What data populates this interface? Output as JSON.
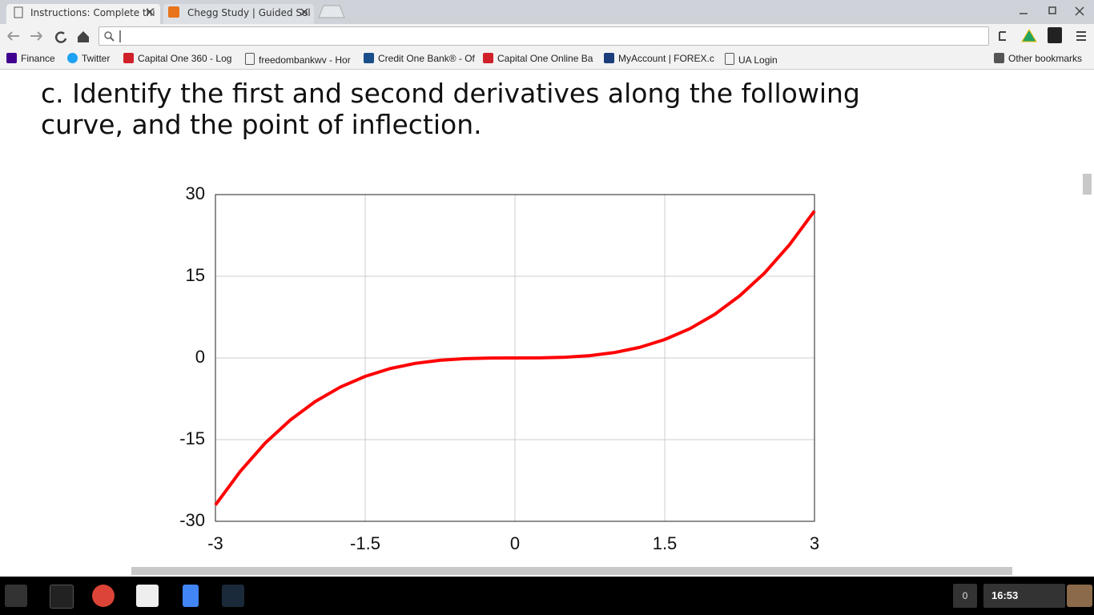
{
  "tabs": [
    {
      "title": "Instructions: Complete thi"
    },
    {
      "title": "Chegg Study | Guided Sol"
    }
  ],
  "bookmarks": [
    "Finance",
    "Twitter",
    "Capital One 360 - Log",
    "freedombankwv - Hor",
    "Credit One Bank® - Of",
    "Capital One Online Ba",
    "MyAccount | FOREX.c",
    "UA Login"
  ],
  "other_bookmarks": "Other bookmarks",
  "heading": "c. Identify the first and second derivatives along the following curve, and the point of inflection.",
  "chart_data": {
    "type": "line",
    "x": [
      -3,
      -2.75,
      -2.5,
      -2.25,
      -2,
      -1.75,
      -1.5,
      -1.25,
      -1,
      -0.75,
      -0.5,
      -0.25,
      0,
      0.25,
      0.5,
      0.75,
      1,
      1.25,
      1.5,
      1.75,
      2,
      2.25,
      2.5,
      2.75,
      3
    ],
    "series": [
      {
        "color": "#ff0000",
        "values": [
          -27,
          -20.8,
          -15.6,
          -11.4,
          -8,
          -5.36,
          -3.38,
          -1.95,
          -1,
          -0.42,
          -0.13,
          -0.02,
          0,
          0.02,
          0.13,
          0.42,
          1,
          1.95,
          3.38,
          5.36,
          8,
          11.4,
          15.6,
          20.8,
          27
        ]
      }
    ],
    "xlim": [
      -3,
      3
    ],
    "ylim": [
      -30,
      30
    ],
    "xticks": [
      -3,
      -1.5,
      0,
      1.5,
      3
    ],
    "yticks": [
      -30,
      -15,
      0,
      15,
      30
    ],
    "grid": true
  },
  "taskbar": {
    "notifications": "0",
    "time": "16:53"
  }
}
